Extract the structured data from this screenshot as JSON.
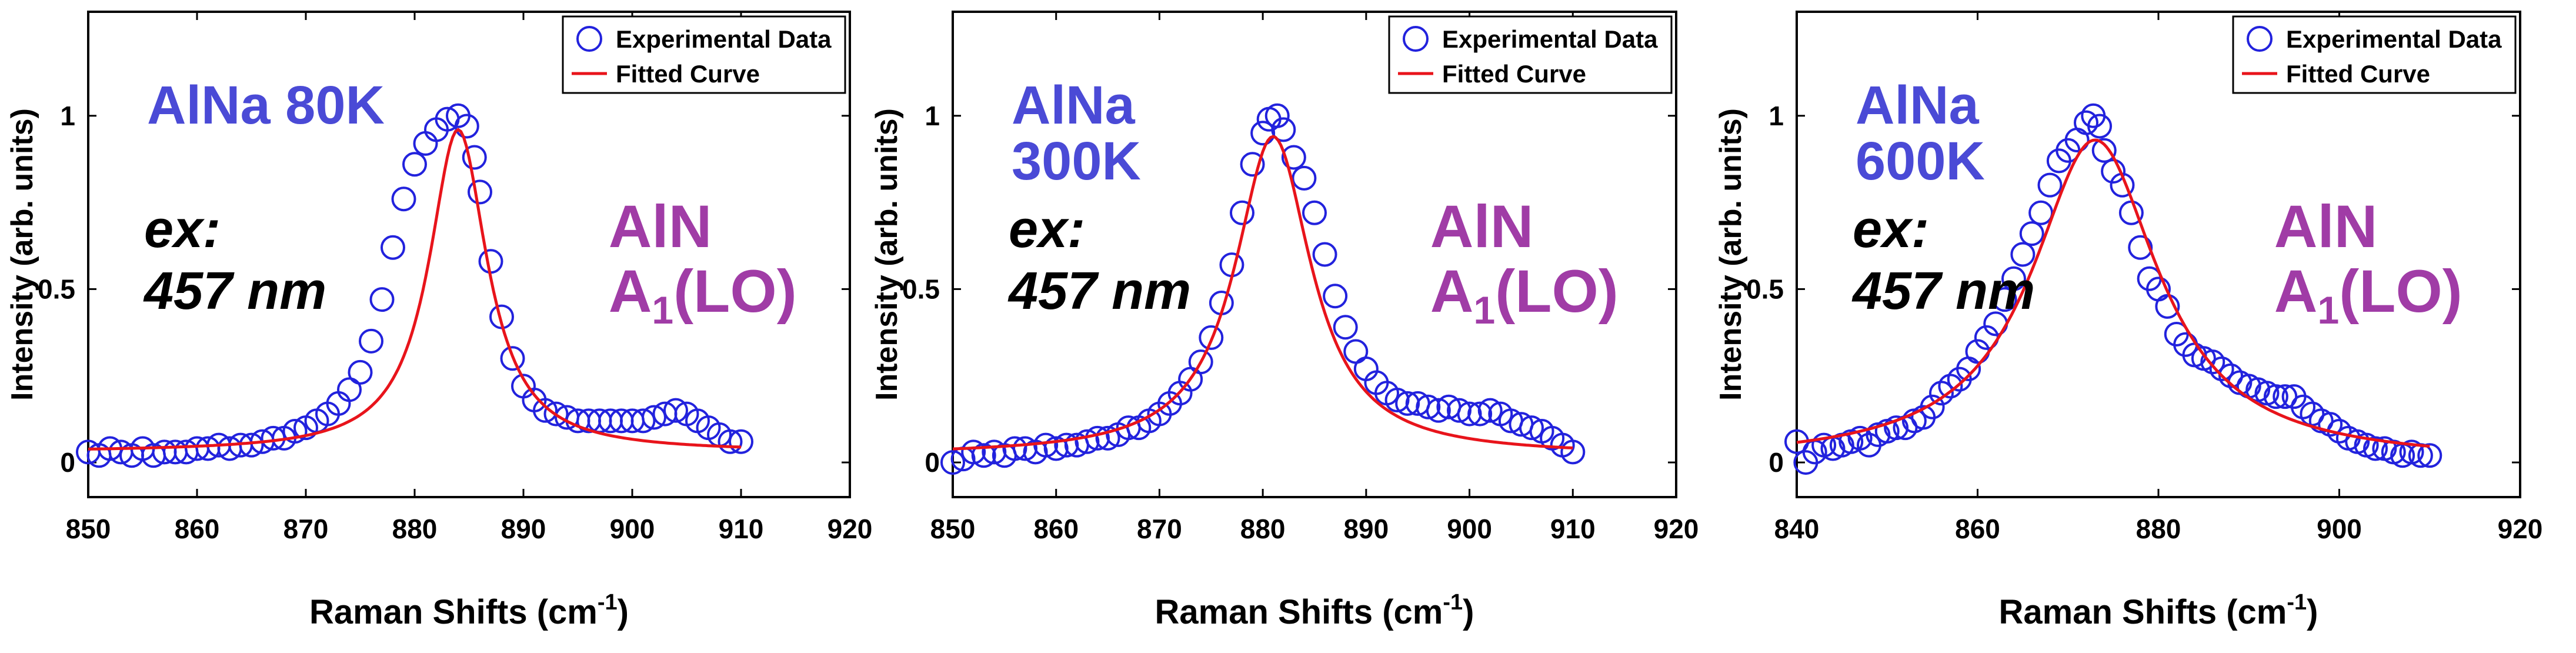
{
  "colors": {
    "experimental": "#2222dd",
    "fitted": "#e8141b",
    "sample_label": "#4a4ad6",
    "peak_label": "#a03ca6",
    "excitation": "#000000",
    "axis": "#000000"
  },
  "chart_data": [
    {
      "type": "scatter",
      "sample_label_lines": [
        "AlNa 80K"
      ],
      "excitation_lines": [
        "ex:",
        "457 nm"
      ],
      "peak_label": {
        "main": "AlN",
        "base": "A",
        "sub": "1",
        "tail": "(LO)"
      },
      "xlabel": {
        "main": "Raman Shifts (cm",
        "sup": "-1",
        "tail": ")"
      },
      "ylabel": "Intensity (arb. units)",
      "xlim": [
        850,
        920
      ],
      "ylim": [
        -0.1,
        1.3
      ],
      "xticks": [
        "850",
        "860",
        "870",
        "880",
        "890",
        "900",
        "910",
        "920"
      ],
      "yticks": [
        "0",
        "0.5",
        "1"
      ],
      "legend": {
        "position": "top-right",
        "entries": [
          "Experimental Data",
          "Fitted Curve"
        ]
      },
      "fit": {
        "type": "lorentzian",
        "center": 884.0,
        "width": 6.5,
        "amplitude": 0.93,
        "baseline": 0.03,
        "background_slope": 0.0,
        "x_range": [
          850,
          910
        ]
      },
      "series": [
        {
          "name": "Experimental Data",
          "x": [
            850,
            851,
            852,
            853,
            854,
            855,
            856,
            857,
            858,
            859,
            860,
            861,
            862,
            863,
            864,
            865,
            866,
            867,
            868,
            869,
            870,
            871,
            872,
            873,
            874,
            875,
            876,
            877,
            878,
            879,
            880,
            881,
            882,
            883,
            884,
            884.8,
            885.5,
            886,
            887,
            888,
            889,
            890,
            891,
            892,
            893,
            894,
            895,
            896,
            897,
            898,
            899,
            900,
            901,
            902,
            903,
            904,
            905,
            906,
            907,
            908,
            909,
            910
          ],
          "y": [
            0.03,
            0.02,
            0.04,
            0.03,
            0.02,
            0.04,
            0.02,
            0.03,
            0.03,
            0.03,
            0.04,
            0.04,
            0.05,
            0.04,
            0.05,
            0.05,
            0.06,
            0.07,
            0.07,
            0.09,
            0.1,
            0.12,
            0.14,
            0.17,
            0.21,
            0.26,
            0.35,
            0.47,
            0.62,
            0.76,
            0.86,
            0.92,
            0.96,
            0.99,
            1.0,
            0.97,
            0.88,
            0.78,
            0.58,
            0.42,
            0.3,
            0.22,
            0.18,
            0.15,
            0.14,
            0.13,
            0.12,
            0.12,
            0.12,
            0.12,
            0.12,
            0.12,
            0.12,
            0.13,
            0.14,
            0.15,
            0.14,
            0.12,
            0.1,
            0.08,
            0.06,
            0.06
          ]
        },
        {
          "name": "Fitted Curve",
          "x": [],
          "y": []
        }
      ]
    },
    {
      "type": "scatter",
      "sample_label_lines": [
        "AlNa",
        "300K"
      ],
      "excitation_lines": [
        "ex:",
        "457 nm"
      ],
      "peak_label": {
        "main": "AlN",
        "base": "A",
        "sub": "1",
        "tail": "(LO)"
      },
      "xlabel": {
        "main": "Raman Shifts (cm",
        "sup": "-1",
        "tail": ")"
      },
      "ylabel": "Intensity (arb. units)",
      "xlim": [
        850,
        920
      ],
      "ylim": [
        -0.1,
        1.3
      ],
      "xticks": [
        "850",
        "860",
        "870",
        "880",
        "890",
        "900",
        "910",
        "920"
      ],
      "yticks": [
        "0",
        "0.5",
        "1"
      ],
      "legend": {
        "position": "top-right",
        "entries": [
          "Experimental Data",
          "Fitted Curve"
        ]
      },
      "fit": {
        "type": "lorentzian",
        "center": 881.0,
        "width": 9.0,
        "amplitude": 0.92,
        "baseline": 0.02,
        "background_slope": 0.0,
        "x_range": [
          850,
          910
        ]
      },
      "series": [
        {
          "name": "Experimental Data",
          "x": [
            850,
            851,
            852,
            853,
            854,
            855,
            856,
            857,
            858,
            859,
            860,
            861,
            862,
            863,
            864,
            865,
            866,
            867,
            868,
            869,
            870,
            871,
            872,
            873,
            874,
            875,
            876,
            877,
            878,
            879,
            880,
            880.6,
            881.4,
            882,
            883,
            884,
            885,
            886,
            887,
            888,
            889,
            890,
            891,
            892,
            893,
            894,
            895,
            896,
            897,
            898,
            899,
            900,
            901,
            902,
            903,
            904,
            905,
            906,
            907,
            908,
            909,
            910
          ],
          "y": [
            0.0,
            0.01,
            0.03,
            0.02,
            0.03,
            0.02,
            0.04,
            0.04,
            0.03,
            0.05,
            0.04,
            0.05,
            0.05,
            0.06,
            0.07,
            0.07,
            0.08,
            0.1,
            0.1,
            0.12,
            0.14,
            0.17,
            0.2,
            0.24,
            0.29,
            0.36,
            0.46,
            0.57,
            0.72,
            0.86,
            0.95,
            0.99,
            1.0,
            0.96,
            0.88,
            0.82,
            0.72,
            0.6,
            0.48,
            0.39,
            0.32,
            0.27,
            0.23,
            0.2,
            0.18,
            0.17,
            0.17,
            0.16,
            0.15,
            0.16,
            0.15,
            0.14,
            0.14,
            0.15,
            0.14,
            0.12,
            0.11,
            0.1,
            0.09,
            0.07,
            0.05,
            0.03
          ]
        },
        {
          "name": "Fitted Curve",
          "x": [],
          "y": []
        }
      ]
    },
    {
      "type": "scatter",
      "sample_label_lines": [
        "AlNa",
        "600K"
      ],
      "excitation_lines": [
        "ex:",
        "457 nm"
      ],
      "peak_label": {
        "main": "AlN",
        "base": "A",
        "sub": "1",
        "tail": "(LO)"
      },
      "xlabel": {
        "main": "Raman Shifts (cm",
        "sup": "-1",
        "tail": ")"
      },
      "ylabel": "Intensity (arb. units)",
      "xlim": [
        840,
        920
      ],
      "ylim": [
        -0.1,
        1.3
      ],
      "xticks": [
        "840",
        "860",
        "880",
        "900",
        "920"
      ],
      "yticks": [
        "0",
        "0.5",
        "1"
      ],
      "legend": {
        "position": "top-right",
        "entries": [
          "Experimental Data",
          "Fitted Curve"
        ]
      },
      "fit": {
        "type": "lorentzian",
        "center": 873.0,
        "width": 17.0,
        "amplitude": 0.93,
        "baseline": 0.0,
        "background_slope": 0.0,
        "x_range": [
          840,
          910
        ]
      },
      "series": [
        {
          "name": "Experimental Data",
          "x": [
            840,
            841,
            842,
            843,
            844,
            845,
            846,
            847,
            848,
            849,
            850,
            851,
            852,
            853,
            854,
            855,
            856,
            857,
            858,
            859,
            860,
            861,
            862,
            863,
            864,
            865,
            866,
            867,
            868,
            869,
            870,
            871,
            872,
            872.8,
            873.5,
            874,
            875,
            876,
            877,
            878,
            879,
            880,
            881,
            882,
            883,
            884,
            885,
            886,
            887,
            888,
            889,
            890,
            891,
            892,
            893,
            894,
            895,
            896,
            897,
            898,
            899,
            900,
            901,
            902,
            903,
            904,
            905,
            906,
            907,
            908,
            909,
            910
          ],
          "y": [
            0.06,
            0.0,
            0.03,
            0.05,
            0.04,
            0.05,
            0.06,
            0.07,
            0.05,
            0.08,
            0.09,
            0.1,
            0.1,
            0.12,
            0.13,
            0.16,
            0.2,
            0.22,
            0.24,
            0.27,
            0.32,
            0.36,
            0.4,
            0.47,
            0.53,
            0.6,
            0.66,
            0.72,
            0.8,
            0.87,
            0.9,
            0.93,
            0.98,
            1.0,
            0.97,
            0.9,
            0.84,
            0.8,
            0.72,
            0.62,
            0.53,
            0.5,
            0.45,
            0.37,
            0.34,
            0.31,
            0.3,
            0.29,
            0.27,
            0.25,
            0.23,
            0.22,
            0.21,
            0.2,
            0.19,
            0.19,
            0.19,
            0.16,
            0.14,
            0.12,
            0.11,
            0.09,
            0.07,
            0.06,
            0.05,
            0.04,
            0.04,
            0.03,
            0.02,
            0.03,
            0.02,
            0.02
          ]
        },
        {
          "name": "Fitted Curve",
          "x": [],
          "y": []
        }
      ]
    }
  ]
}
